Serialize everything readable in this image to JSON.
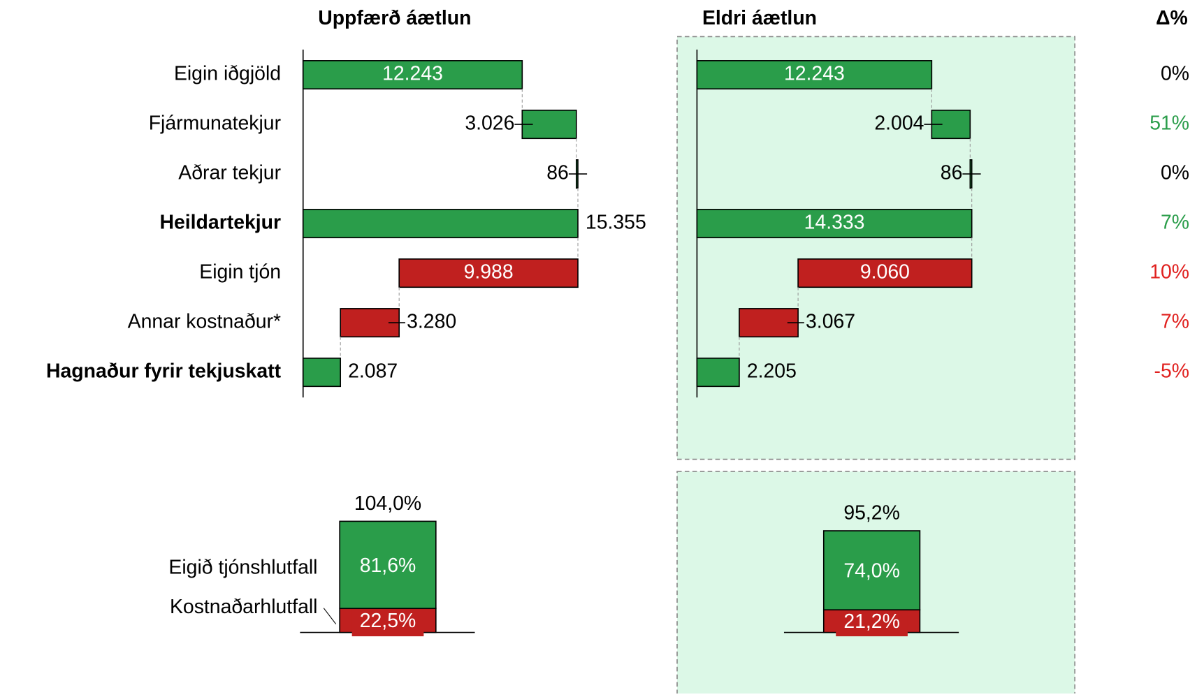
{
  "delta_header": "Δ%",
  "delta": {
    "values": [
      0,
      51,
      0,
      7,
      10,
      7,
      -5
    ],
    "value_labels": [
      "0%",
      "51%",
      "0%",
      "7%",
      "10%",
      "7%",
      "-5%"
    ],
    "colors": [
      "#000000",
      "#2a9d4a",
      "#000000",
      "#2a9d4a",
      "#e0201e",
      "#e0201e",
      "#e0201e"
    ]
  },
  "chart_data": [
    {
      "type": "waterfall",
      "title": "Uppfærð áætlun",
      "categories": [
        "Eigin iðgjöld",
        "Fjármunatekjur",
        "Aðrar tekjur",
        "Heildartekjur",
        "Eigin tjón",
        "Annar kostnaður*",
        "Hagnaður fyrir tekjuskatt"
      ],
      "bold_categories": [
        false,
        false,
        false,
        true,
        false,
        false,
        true
      ],
      "values": [
        12243,
        3026,
        86,
        15355,
        9988,
        3280,
        2087
      ],
      "value_labels": [
        "12.243",
        "3.026",
        "86",
        "15.355",
        "9.988",
        "3.280",
        "2.087"
      ],
      "kinds": [
        "increase",
        "increase",
        "increase",
        "total",
        "decrease",
        "decrease",
        "total"
      ],
      "label_positions": [
        "inside",
        "left",
        "left",
        "right",
        "inside",
        "right",
        "right"
      ],
      "colors": {
        "increase": "#2a9d4a",
        "total": "#2a9d4a",
        "decrease": "#c0201f"
      }
    },
    {
      "type": "waterfall",
      "title": "Eldri áætlun",
      "values": [
        12243,
        2004,
        86,
        14333,
        9060,
        3067,
        2205
      ],
      "value_labels": [
        "12.243",
        "2.004",
        "86",
        "14.333",
        "9.060",
        "3.067",
        "2.205"
      ],
      "kinds": [
        "increase",
        "increase",
        "increase",
        "total",
        "decrease",
        "decrease",
        "total"
      ],
      "label_positions": [
        "inside",
        "left",
        "left",
        "inside",
        "inside",
        "right",
        "right"
      ],
      "colors": {
        "increase": "#2a9d4a",
        "total": "#2a9d4a",
        "decrease": "#c0201f"
      }
    },
    {
      "type": "stacked-bar",
      "total": 104.0,
      "total_label": "104,0%",
      "series": [
        {
          "name": "Eigið tjónshlutfall",
          "color": "#2a9d4a",
          "values": [
            81.6
          ],
          "value_labels": [
            "81,6%"
          ]
        },
        {
          "name": "Kostnaðarhlutfall",
          "color": "#c0201f",
          "values": [
            22.5
          ],
          "value_labels": [
            "22,5%"
          ]
        }
      ]
    },
    {
      "type": "stacked-bar",
      "total": 95.2,
      "total_label": "95,2%",
      "series": [
        {
          "color": "#2a9d4a",
          "values": [
            74.0
          ],
          "value_labels": [
            "74,0%"
          ]
        },
        {
          "color": "#c0201f",
          "values": [
            21.2
          ],
          "value_labels": [
            "21,2%"
          ]
        }
      ]
    }
  ]
}
